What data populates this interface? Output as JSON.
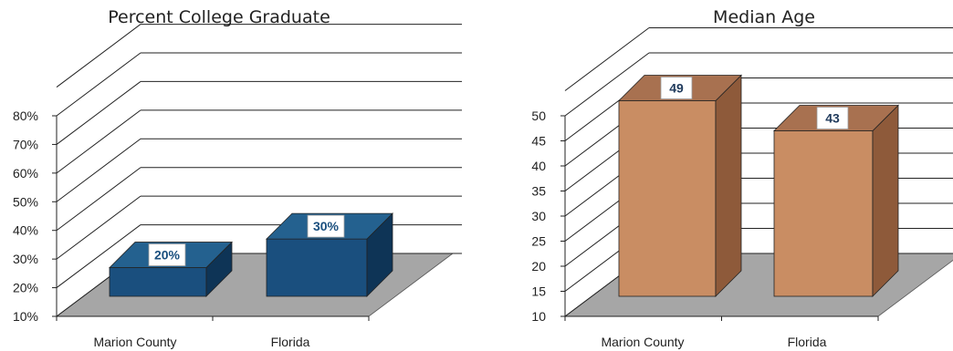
{
  "chart_data": [
    {
      "type": "bar",
      "title": "Percent College Graduate",
      "categories": [
        "Marion County",
        "Florida"
      ],
      "values": [
        20,
        30
      ],
      "data_labels": [
        "20%",
        "30%"
      ],
      "y_ticks": [
        "10%",
        "20%",
        "30%",
        "40%",
        "50%",
        "60%",
        "70%",
        "80%"
      ],
      "ylim": [
        10,
        80
      ],
      "grid": true,
      "legend": "none",
      "colors": {
        "front": "#1a4f7e",
        "side": "#0e3456",
        "top": "#24618f",
        "floor": "#a6a6a6",
        "label_text": "#1a4f7e"
      }
    },
    {
      "type": "bar",
      "title": "Median Age",
      "categories": [
        "Marion County",
        "Florida"
      ],
      "values": [
        49,
        43
      ],
      "data_labels": [
        "49",
        "43"
      ],
      "y_ticks": [
        "10",
        "15",
        "20",
        "25",
        "30",
        "35",
        "40",
        "45",
        "50"
      ],
      "ylim": [
        10,
        50
      ],
      "grid": true,
      "legend": "none",
      "colors": {
        "front": "#c98d63",
        "side": "#8e5a3a",
        "top": "#a87150",
        "floor": "#a6a6a6",
        "label_text": "#1f3a5c"
      }
    }
  ]
}
